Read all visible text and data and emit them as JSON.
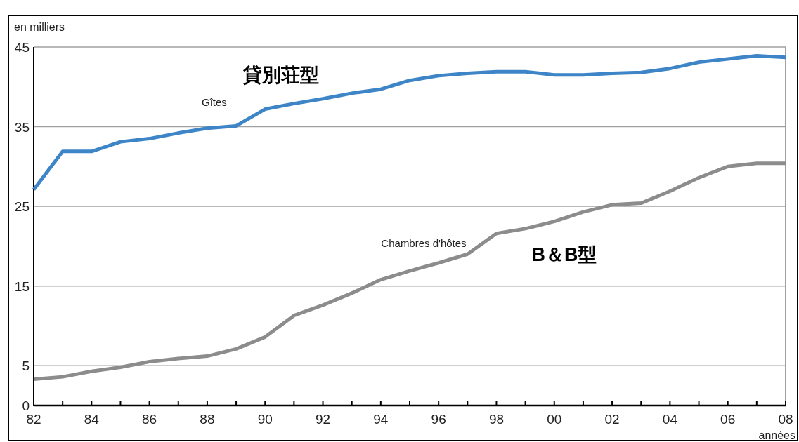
{
  "chart_data": {
    "type": "line",
    "ylabel": "en milliers",
    "xlabel": "années",
    "categories": [
      "82",
      null,
      "84",
      null,
      "86",
      null,
      "88",
      null,
      "90",
      null,
      "92",
      null,
      "94",
      null,
      "96",
      null,
      "98",
      null,
      "00",
      null,
      "02",
      null,
      "04",
      null,
      "06",
      null,
      "08"
    ],
    "series": [
      {
        "name": "Gîtes",
        "color": "#3d85c6",
        "values": [
          27.1,
          31.9,
          31.9,
          33.1,
          33.5,
          34.2,
          34.8,
          35.1,
          37.2,
          37.9,
          38.5,
          39.2,
          39.7,
          40.8,
          41.4,
          41.7,
          41.9,
          41.9,
          41.5,
          41.5,
          41.7,
          41.8,
          42.3,
          43.1,
          43.5,
          43.9,
          43.7
        ]
      },
      {
        "name": "Chambres d'hôtes",
        "color": "#8c8c8c",
        "values": [
          3.3,
          3.6,
          4.3,
          4.8,
          5.5,
          5.9,
          6.2,
          7.1,
          8.6,
          11.3,
          12.6,
          14.1,
          15.8,
          16.9,
          17.9,
          19.0,
          21.6,
          22.2,
          23.1,
          24.3,
          25.2,
          25.4,
          26.9,
          28.6,
          30.0,
          30.4,
          30.4
        ]
      }
    ],
    "ylim": [
      0,
      45
    ],
    "yticks": [
      0,
      5,
      15,
      25,
      35,
      45
    ],
    "grid": "y",
    "annotations": [
      "貸別荘型",
      "B＆B型"
    ]
  }
}
